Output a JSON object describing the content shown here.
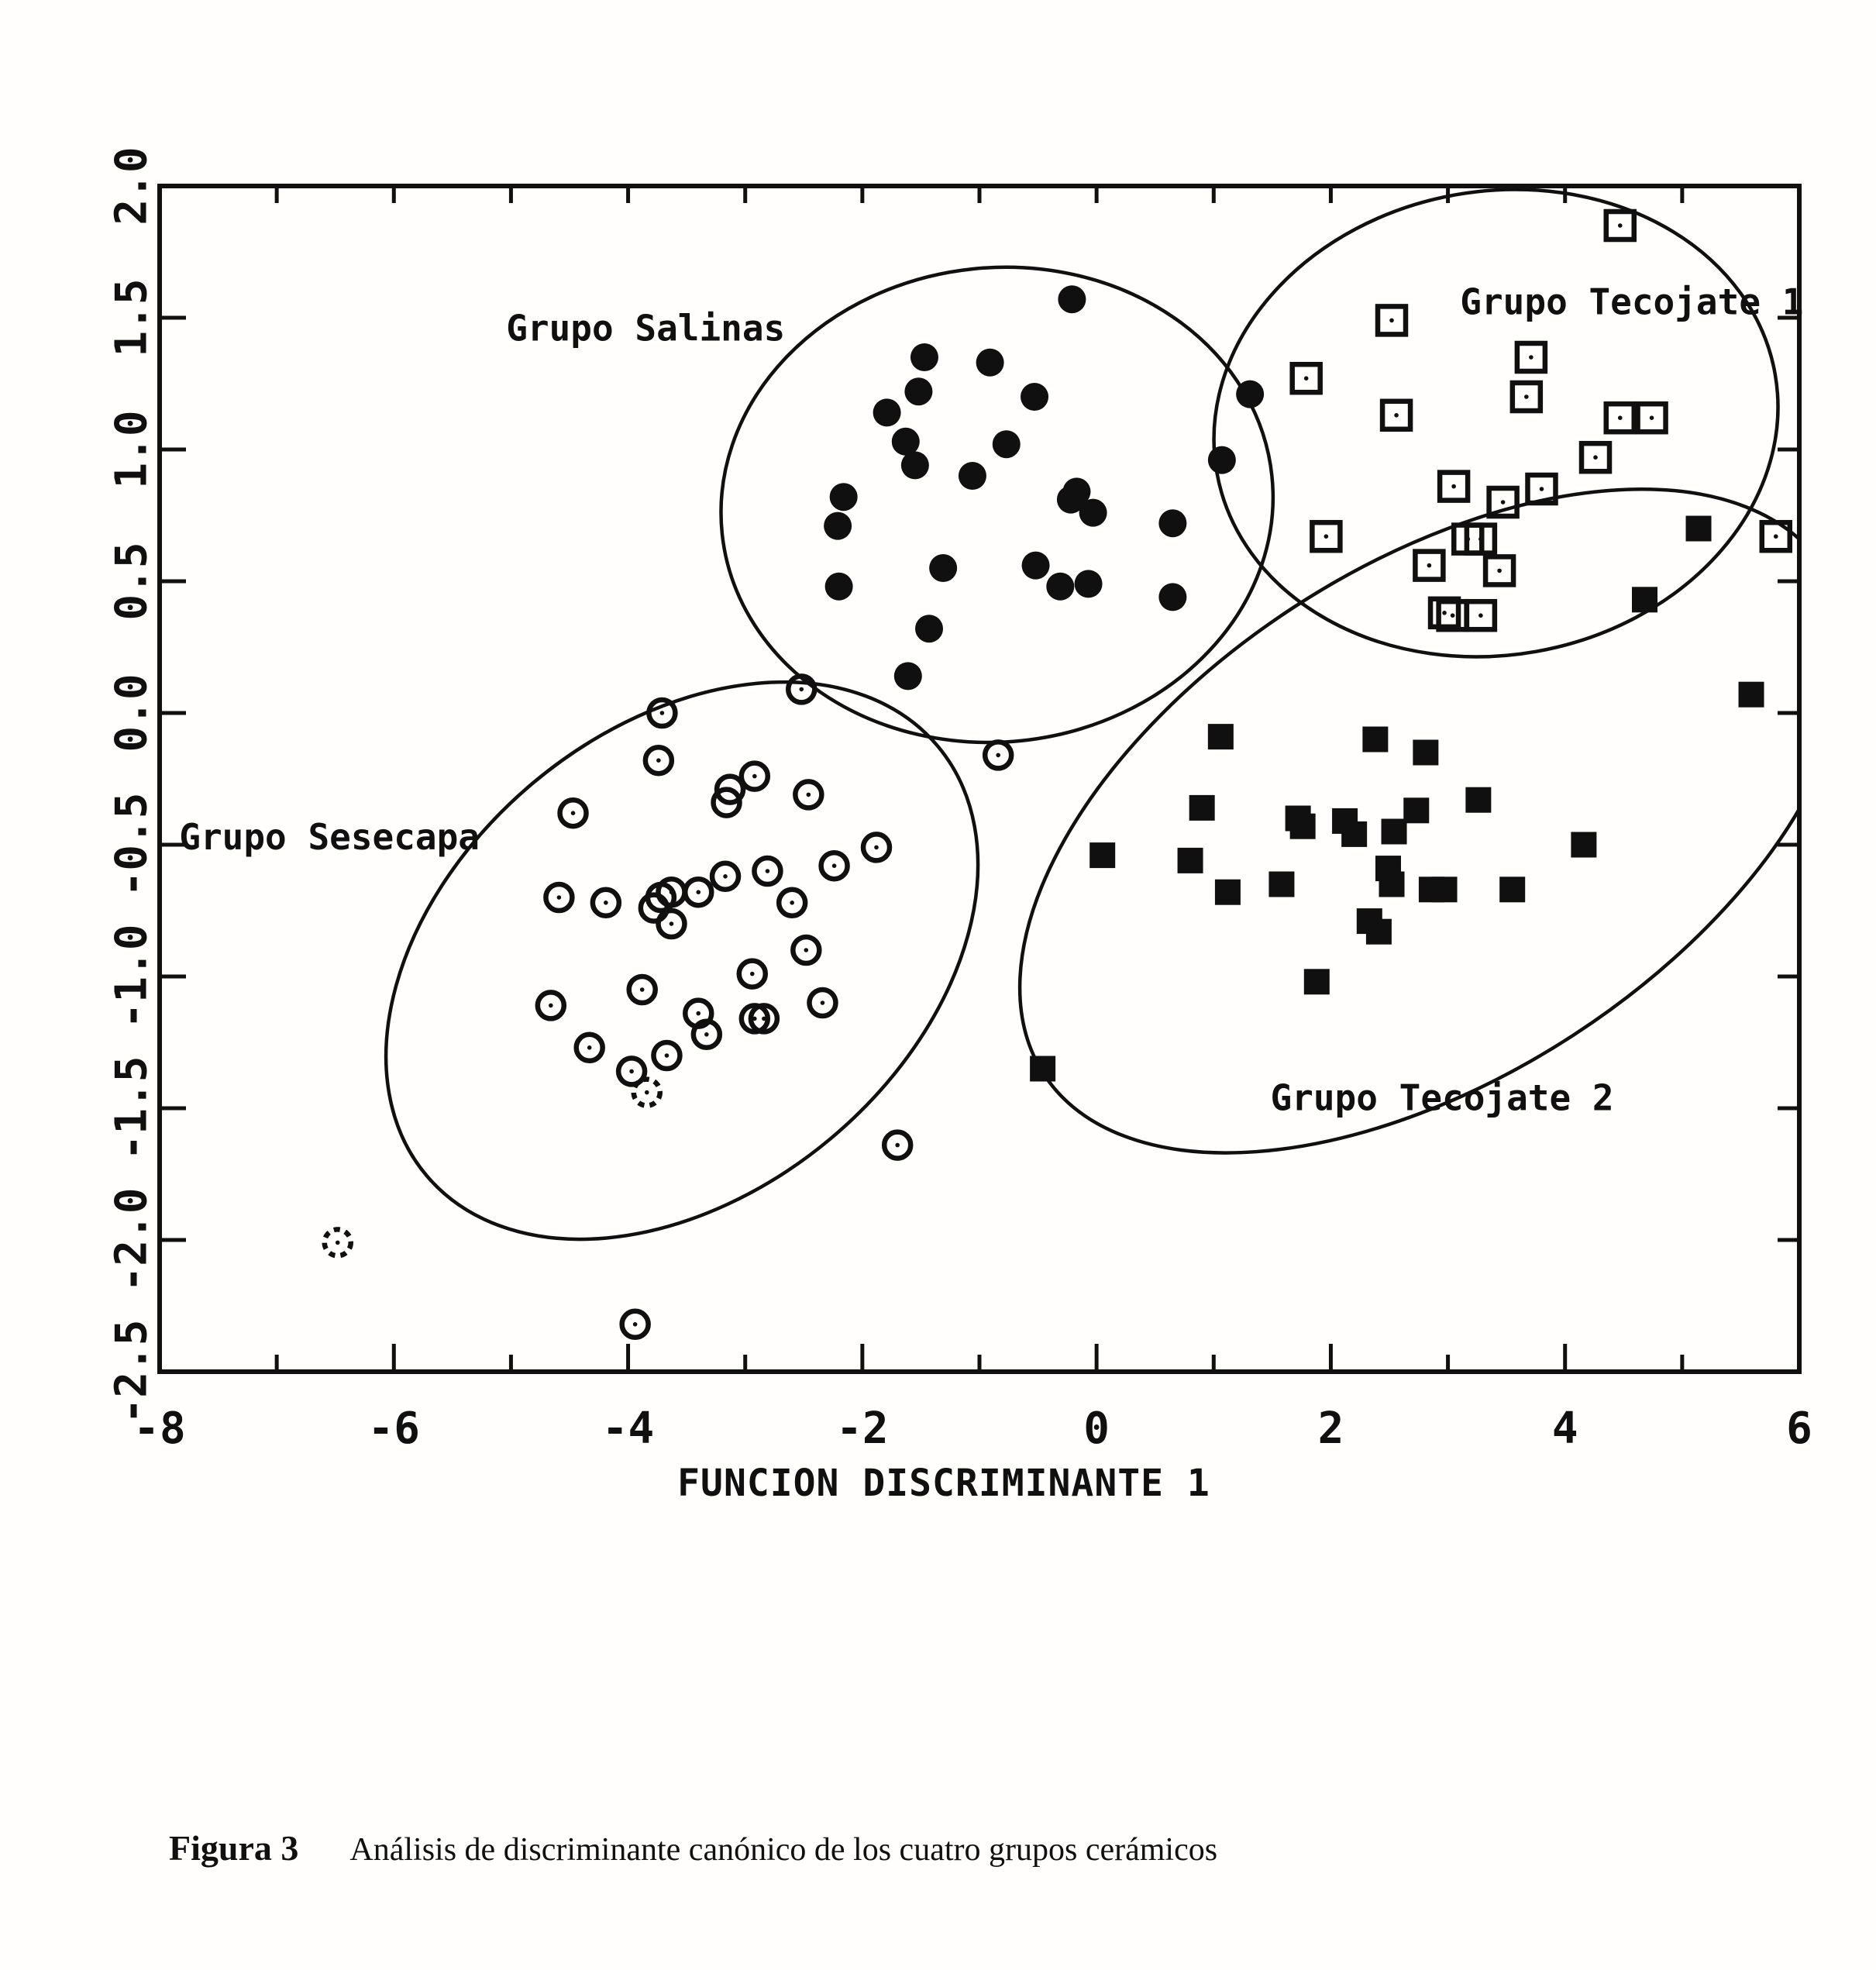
{
  "figure": {
    "caption_label": "Figura 3",
    "caption_text": "Análisis de discriminante canónico de los cuatro grupos cerámicos"
  },
  "chart_data": {
    "type": "scatter",
    "title": "",
    "xlabel": "FUNCION DISCRIMINANTE 1",
    "ylabel": "",
    "xlim": [
      -8,
      6
    ],
    "ylim": [
      -2.5,
      2.0
    ],
    "grid": false,
    "x_major_ticks": [
      -8,
      -6,
      -4,
      -2,
      0,
      2,
      4,
      6
    ],
    "x_tick_labels": [
      "-8",
      "-6",
      "-4",
      "-2",
      "0",
      "2",
      "4",
      "6"
    ],
    "x_minor_ticks": [
      -7,
      -5,
      -3,
      -1,
      1,
      3,
      5
    ],
    "top_ticks": [
      -7,
      -6,
      -5,
      -4,
      -3,
      -2,
      -1,
      0,
      1,
      2,
      3,
      4,
      5
    ],
    "y_ticks": [
      2.0,
      1.5,
      1.0,
      0.5,
      0.0,
      -0.5,
      -1.0,
      -1.5,
      -2.0,
      -2.5
    ],
    "y_tick_labels": [
      "2.0",
      "1.5",
      "1.0",
      "0.5",
      "0.0",
      "-0.5",
      "-1.0",
      "-1.5",
      "-2.0",
      "-2.5"
    ],
    "right_ticks": [
      1.5,
      1.0,
      0.5,
      0.0,
      -0.5,
      -1.0,
      -1.5,
      -2.0
    ],
    "series": [
      {
        "name": "Grupo Salinas",
        "marker": "filled-circle",
        "points": [
          [
            -0.21,
            1.57
          ],
          [
            -1.47,
            1.35
          ],
          [
            -0.91,
            1.33
          ],
          [
            -1.52,
            1.22
          ],
          [
            -0.53,
            1.2
          ],
          [
            1.31,
            1.21
          ],
          [
            -1.79,
            1.14
          ],
          [
            -1.63,
            1.03
          ],
          [
            -0.77,
            1.02
          ],
          [
            1.07,
            0.96
          ],
          [
            -1.55,
            0.94
          ],
          [
            -1.06,
            0.9
          ],
          [
            -0.17,
            0.84
          ],
          [
            -0.22,
            0.81
          ],
          [
            -2.16,
            0.82
          ],
          [
            -0.03,
            0.76
          ],
          [
            0.65,
            0.72
          ],
          [
            -2.21,
            0.71
          ],
          [
            -1.31,
            0.55
          ],
          [
            -0.52,
            0.56
          ],
          [
            -0.07,
            0.49
          ],
          [
            -0.31,
            0.48
          ],
          [
            -2.2,
            0.48
          ],
          [
            0.65,
            0.44
          ],
          [
            -1.43,
            0.32
          ],
          [
            -1.61,
            0.14
          ]
        ]
      },
      {
        "name": "Grupo Tecojate 1",
        "marker": "open-square",
        "points": [
          [
            4.47,
            1.85
          ],
          [
            2.52,
            1.49
          ],
          [
            3.71,
            1.35
          ],
          [
            1.79,
            1.27
          ],
          [
            3.67,
            1.2
          ],
          [
            2.56,
            1.13
          ],
          [
            4.47,
            1.12
          ],
          [
            4.74,
            1.12
          ],
          [
            4.26,
            0.97
          ],
          [
            3.05,
            0.86
          ],
          [
            3.8,
            0.85
          ],
          [
            3.47,
            0.8
          ],
          [
            1.96,
            0.67
          ],
          [
            3.17,
            0.66
          ],
          [
            3.28,
            0.66
          ],
          [
            5.8,
            0.67
          ],
          [
            2.84,
            0.56
          ],
          [
            3.44,
            0.54
          ],
          [
            2.97,
            0.38
          ],
          [
            3.04,
            0.37
          ],
          [
            3.28,
            0.37
          ]
        ]
      },
      {
        "name": "Grupo Sesecapa",
        "marker": "open-circle",
        "points": [
          [
            -2.52,
            0.09
          ],
          [
            -3.71,
            0.0
          ],
          [
            -3.74,
            -0.18
          ],
          [
            -2.92,
            -0.24
          ],
          [
            -3.13,
            -0.29
          ],
          [
            -3.16,
            -0.34
          ],
          [
            -2.46,
            -0.31
          ],
          [
            -4.47,
            -0.38
          ],
          [
            -1.88,
            -0.51
          ],
          [
            -2.81,
            -0.6
          ],
          [
            -3.17,
            -0.62
          ],
          [
            -2.24,
            -0.58
          ],
          [
            -4.59,
            -0.7
          ],
          [
            -4.19,
            -0.72
          ],
          [
            -3.63,
            -0.68
          ],
          [
            -3.72,
            -0.7
          ],
          [
            -3.78,
            -0.74
          ],
          [
            -3.4,
            -0.68
          ],
          [
            -2.6,
            -0.72
          ],
          [
            -3.63,
            -0.8
          ],
          [
            -2.48,
            -0.9
          ],
          [
            -2.94,
            -0.99
          ],
          [
            -2.34,
            -1.1
          ],
          [
            -3.88,
            -1.05
          ],
          [
            -4.66,
            -1.11
          ],
          [
            -3.4,
            -1.14
          ],
          [
            -2.92,
            -1.16
          ],
          [
            -2.84,
            -1.16
          ],
          [
            -3.33,
            -1.22
          ],
          [
            -4.33,
            -1.27
          ],
          [
            -3.67,
            -1.3
          ],
          [
            -3.97,
            -1.36
          ],
          [
            -0.84,
            -0.16
          ],
          [
            -1.7,
            -1.64
          ],
          [
            -3.94,
            -2.32
          ]
        ],
        "dashed_points": [
          [
            -6.48,
            -2.01
          ],
          [
            -3.84,
            -1.44
          ]
        ]
      },
      {
        "name": "Grupo Tecojate 2",
        "marker": "filled-square",
        "points": [
          [
            5.14,
            0.7
          ],
          [
            4.68,
            0.43
          ],
          [
            5.59,
            0.07
          ],
          [
            1.06,
            -0.09
          ],
          [
            2.38,
            -0.1
          ],
          [
            2.81,
            -0.15
          ],
          [
            3.26,
            -0.33
          ],
          [
            0.9,
            -0.36
          ],
          [
            2.73,
            -0.37
          ],
          [
            1.72,
            -0.4
          ],
          [
            1.76,
            -0.43
          ],
          [
            2.12,
            -0.41
          ],
          [
            2.2,
            -0.46
          ],
          [
            2.54,
            -0.45
          ],
          [
            4.16,
            -0.5
          ],
          [
            0.05,
            -0.54
          ],
          [
            0.8,
            -0.56
          ],
          [
            1.58,
            -0.65
          ],
          [
            2.49,
            -0.59
          ],
          [
            1.12,
            -0.68
          ],
          [
            2.52,
            -0.65
          ],
          [
            2.86,
            -0.67
          ],
          [
            2.97,
            -0.67
          ],
          [
            3.55,
            -0.67
          ],
          [
            2.33,
            -0.79
          ],
          [
            2.41,
            -0.83
          ],
          [
            1.88,
            -1.02
          ],
          [
            -0.46,
            -1.35
          ]
        ]
      }
    ],
    "group_labels": [
      {
        "text": "Grupo Salinas",
        "x": -3.85,
        "y": 1.46
      },
      {
        "text": "Grupo Tecojate 1",
        "x": 4.57,
        "y": 1.56
      },
      {
        "text": "Grupo Sesecapa",
        "x": -6.55,
        "y": -0.47
      },
      {
        "text": "Grupo Tecojate 2",
        "x": 2.95,
        "y": -1.46
      }
    ],
    "ellipses": [
      {
        "group": "Grupo Salinas",
        "cx": -0.85,
        "cy": 0.79,
        "rx": 2.36,
        "ry": 0.9,
        "rot": -6
      },
      {
        "group": "Grupo Tecojate 1",
        "cx": 3.41,
        "cy": 1.1,
        "rx": 2.42,
        "ry": 0.88,
        "rot": -10
      },
      {
        "group": "Grupo Sesecapa",
        "cx": -3.54,
        "cy": -0.94,
        "rx": 2.85,
        "ry": 0.88,
        "rot": -40
      },
      {
        "group": "Grupo Tecojate 2",
        "cx": 2.88,
        "cy": -0.41,
        "rx": 3.97,
        "ry": 0.97,
        "rot": -33
      }
    ],
    "ink_color": "#101010",
    "background_color": "#fffefd"
  }
}
